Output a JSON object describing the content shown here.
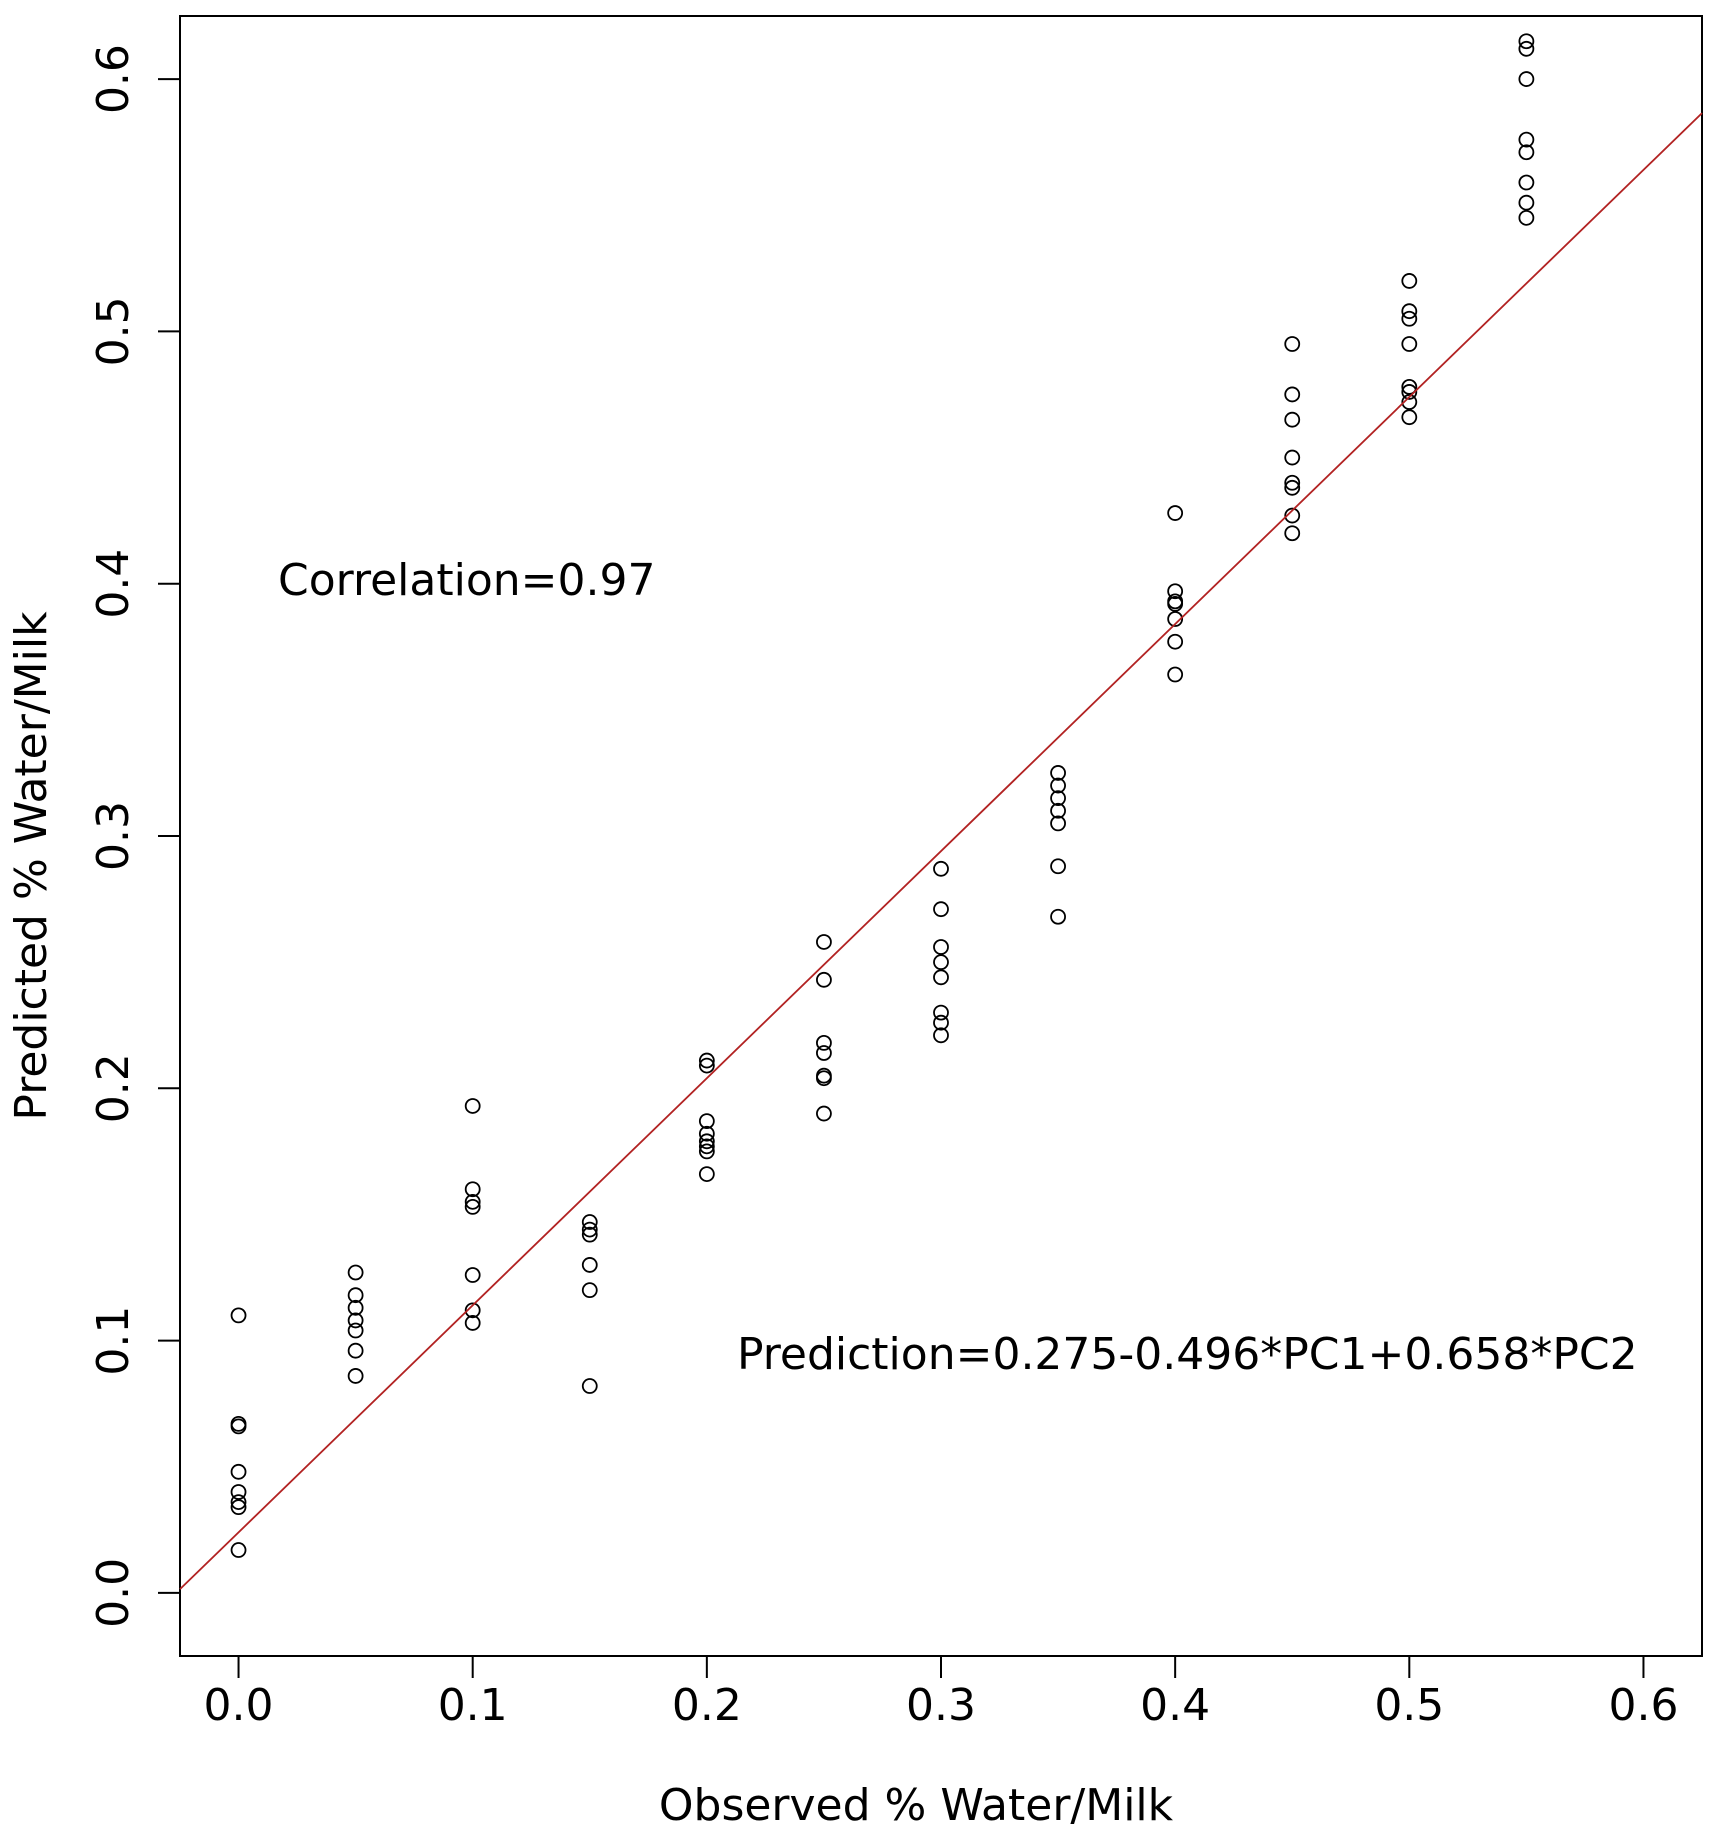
{
  "chart_data": {
    "type": "scatter",
    "title": "",
    "xlabel": "Observed % Water/Milk",
    "ylabel": "Predicted % Water/Milk",
    "xlim": [
      -0.025,
      0.625
    ],
    "ylim": [
      -0.025,
      0.625
    ],
    "xticks": [
      "0.0",
      "0.1",
      "0.2",
      "0.3",
      "0.4",
      "0.5",
      "0.6"
    ],
    "yticks": [
      "0.0",
      "0.1",
      "0.2",
      "0.3",
      "0.4",
      "0.5",
      "0.6"
    ],
    "grid": false,
    "legend": "none",
    "annotations": {
      "correlation": "Correlation=0.97",
      "prediction": "Prediction=0.275-0.496*PC1+0.658*PC2"
    },
    "fit_line": {
      "intercept": 0.024,
      "slope": 0.9,
      "color": "#b22222"
    },
    "marker_color": "#000000",
    "points": [
      [
        0.0,
        0.11
      ],
      [
        0.0,
        0.067
      ],
      [
        0.0,
        0.066
      ],
      [
        0.0,
        0.048
      ],
      [
        0.0,
        0.04
      ],
      [
        0.0,
        0.036
      ],
      [
        0.0,
        0.034
      ],
      [
        0.0,
        0.017
      ],
      [
        0.05,
        0.127
      ],
      [
        0.05,
        0.118
      ],
      [
        0.05,
        0.113
      ],
      [
        0.05,
        0.108
      ],
      [
        0.05,
        0.104
      ],
      [
        0.05,
        0.096
      ],
      [
        0.05,
        0.086
      ],
      [
        0.1,
        0.193
      ],
      [
        0.1,
        0.16
      ],
      [
        0.1,
        0.155
      ],
      [
        0.1,
        0.153
      ],
      [
        0.1,
        0.126
      ],
      [
        0.1,
        0.112
      ],
      [
        0.1,
        0.107
      ],
      [
        0.15,
        0.147
      ],
      [
        0.15,
        0.144
      ],
      [
        0.15,
        0.142
      ],
      [
        0.15,
        0.13
      ],
      [
        0.15,
        0.12
      ],
      [
        0.15,
        0.082
      ],
      [
        0.2,
        0.211
      ],
      [
        0.2,
        0.209
      ],
      [
        0.2,
        0.187
      ],
      [
        0.2,
        0.182
      ],
      [
        0.2,
        0.179
      ],
      [
        0.2,
        0.177
      ],
      [
        0.2,
        0.175
      ],
      [
        0.2,
        0.166
      ],
      [
        0.25,
        0.258
      ],
      [
        0.25,
        0.243
      ],
      [
        0.25,
        0.218
      ],
      [
        0.25,
        0.214
      ],
      [
        0.25,
        0.205
      ],
      [
        0.25,
        0.204
      ],
      [
        0.25,
        0.19
      ],
      [
        0.3,
        0.287
      ],
      [
        0.3,
        0.271
      ],
      [
        0.3,
        0.256
      ],
      [
        0.3,
        0.25
      ],
      [
        0.3,
        0.244
      ],
      [
        0.3,
        0.23
      ],
      [
        0.3,
        0.226
      ],
      [
        0.3,
        0.221
      ],
      [
        0.35,
        0.325
      ],
      [
        0.35,
        0.32
      ],
      [
        0.35,
        0.315
      ],
      [
        0.35,
        0.31
      ],
      [
        0.35,
        0.305
      ],
      [
        0.35,
        0.288
      ],
      [
        0.35,
        0.268
      ],
      [
        0.4,
        0.428
      ],
      [
        0.4,
        0.397
      ],
      [
        0.4,
        0.393
      ],
      [
        0.4,
        0.392
      ],
      [
        0.4,
        0.386
      ],
      [
        0.4,
        0.377
      ],
      [
        0.4,
        0.364
      ],
      [
        0.45,
        0.495
      ],
      [
        0.45,
        0.475
      ],
      [
        0.45,
        0.465
      ],
      [
        0.45,
        0.45
      ],
      [
        0.45,
        0.44
      ],
      [
        0.45,
        0.438
      ],
      [
        0.45,
        0.427
      ],
      [
        0.45,
        0.42
      ],
      [
        0.5,
        0.52
      ],
      [
        0.5,
        0.508
      ],
      [
        0.5,
        0.505
      ],
      [
        0.5,
        0.495
      ],
      [
        0.5,
        0.478
      ],
      [
        0.5,
        0.476
      ],
      [
        0.5,
        0.472
      ],
      [
        0.5,
        0.466
      ],
      [
        0.55,
        0.615
      ],
      [
        0.55,
        0.612
      ],
      [
        0.55,
        0.6
      ],
      [
        0.55,
        0.576
      ],
      [
        0.55,
        0.571
      ],
      [
        0.55,
        0.559
      ],
      [
        0.55,
        0.551
      ],
      [
        0.55,
        0.545
      ]
    ]
  }
}
